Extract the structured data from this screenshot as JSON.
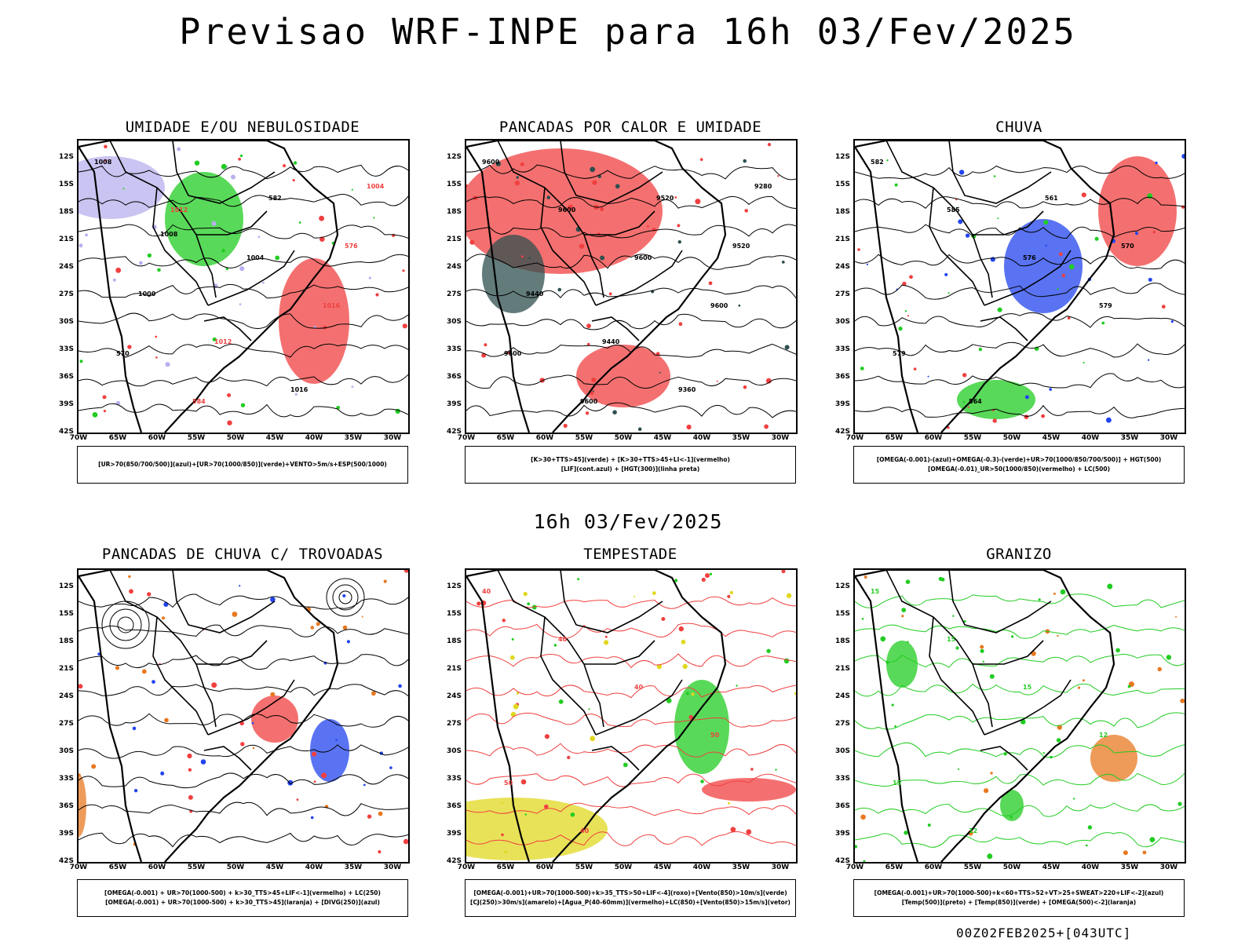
{
  "main_title": "Previsao WRF-INPE  para 16h 03/Fev/2025",
  "mid_time": "16h 03/Fev/2025",
  "run_id": "00Z02FEB2025+[043UTC]",
  "lat_labels": [
    "12S",
    "15S",
    "18S",
    "21S",
    "24S",
    "27S",
    "30S",
    "33S",
    "36S",
    "39S",
    "42S"
  ],
  "lon_labels": [
    "70W",
    "65W",
    "60W",
    "55W",
    "50W",
    "45W",
    "40W",
    "35W",
    "30W"
  ],
  "panels": [
    {
      "title": "UMIDADE E/OU NEBULOSIDADE",
      "legend": [
        "[UR>70(850/700/500)](azul)+[UR>70(1000/850)](verde)+VENTO>5m/s+ESP(500/1000)"
      ],
      "contour_labels": [
        "1008",
        "1012",
        "1004",
        "1016",
        "570",
        "584",
        "582",
        "576",
        "1000",
        "1012",
        "1016",
        "1004",
        "1008"
      ]
    },
    {
      "title": "PANCADAS POR CALOR E UMIDADE",
      "legend": [
        "[K>30+TTS>45](verde) + [K>30+TTS>45+LI<-1](vermelho)",
        "[LIF](cont.azul) + [HGT(300)](linha preta)"
      ],
      "contour_labels": [
        "9600",
        "9600",
        "9600",
        "9600",
        "9600",
        "9600",
        "9520",
        "9520",
        "9440",
        "9440",
        "9360",
        "9280"
      ]
    },
    {
      "title": "CHUVA",
      "legend": [
        "[OMEGA(-0.001)-(azul)+OMEGA(-0.3)-(verde)+UR>70(1000/850/700/500)] + HGT(500)",
        "[OMEGA(-0.01)_UR>50(1000/850)(vermelho) + LC(500)"
      ],
      "contour_labels": [
        "582",
        "585",
        "576",
        "579",
        "579",
        "564",
        "561",
        "570"
      ]
    },
    {
      "title": "PANCADAS DE CHUVA C/ TROVOADAS",
      "legend": [
        "[OMEGA(-0.001) + UR>70(1000-500) + k>30_TTS>45+LIF<-1](vermelho) + LC(250)",
        "[OMEGA(-0.001) + UR>70(1000-500) + k>30_TTS>45](laranja) + [DIVG(250)](azul)"
      ],
      "contour_labels": []
    },
    {
      "title": "TEMPESTADE",
      "legend": [
        "[OMEGA(-0.001)+UR>70(1000-500)+k>35_TTS>50+LIF<-4](roxo)+[Vento(850)>10m/s](verde)",
        "[CJ(250)>30m/s](amarelo)+[Agua_P(40-60mm)](vermelho)+LC(850)+[Vento(850)>15m/s](vetor)"
      ],
      "contour_labels": [
        "40",
        "40",
        "40",
        "50",
        "50",
        "40"
      ]
    },
    {
      "title": "GRANIZO",
      "legend": [
        "[OMEGA(-0.001)+UR>70(1000-500)+k<60+TTS>52+VT>25+SWEAT>220+LIF<-2](azul)",
        "[Temp(500)](preto) + [Temp(850)](verde) + [OMEGA(500)<-2](laranja)"
      ],
      "contour_labels": [
        "15",
        "15",
        "15",
        "12",
        "15",
        "12"
      ]
    }
  ],
  "colors": {
    "red": "#f04040",
    "green": "#22cc22",
    "blue": "#2244ee",
    "lavender": "#b8b0ee",
    "darkteal": "#2f4f4f",
    "yellow": "#e0d820",
    "orange": "#e87820"
  }
}
